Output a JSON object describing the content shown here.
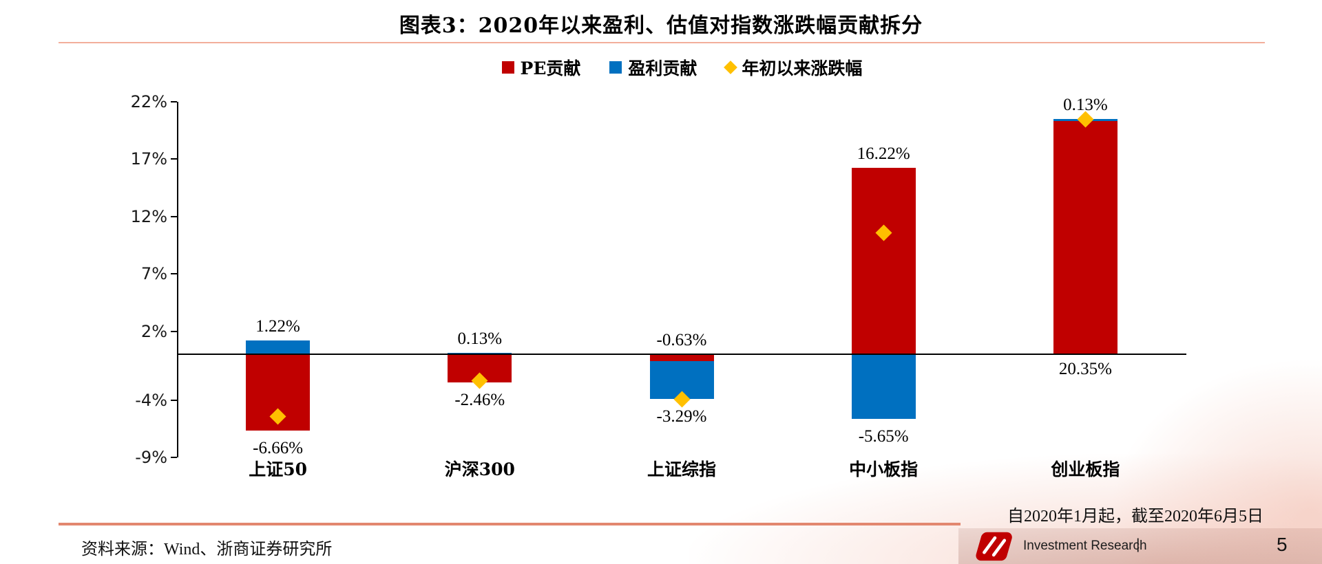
{
  "title": "图表3：2020年以来盈利、估值对指数涨跌幅贡献拆分",
  "legend": [
    {
      "label": "PE贡献",
      "color": "#C00000",
      "shape": "square"
    },
    {
      "label": "盈利贡献",
      "color": "#0070C0",
      "shape": "square"
    },
    {
      "label": "年初以来涨跌幅",
      "color": "#FFC000",
      "shape": "diamond"
    }
  ],
  "chart_data": {
    "type": "bar",
    "subtype": "stacked-bars-with-scatter-markers",
    "title": "图表3：2020年以来盈利、估值对指数涨跌幅贡献拆分",
    "xlabel": "",
    "ylabel": "",
    "categories": [
      "上证50",
      "沪深300",
      "上证综指",
      "中小板指",
      "创业板指"
    ],
    "series": [
      {
        "name": "PE贡献",
        "type": "bar",
        "color": "#C00000",
        "values": [
          -6.66,
          -2.46,
          -0.63,
          16.22,
          20.35
        ]
      },
      {
        "name": "盈利贡献",
        "type": "bar",
        "color": "#0070C0",
        "values": [
          1.22,
          0.13,
          -3.29,
          -5.65,
          0.13
        ]
      },
      {
        "name": "年初以来涨跌幅",
        "type": "scatter",
        "marker": "diamond",
        "color": "#FFC000",
        "values": [
          -5.44,
          -2.33,
          -3.92,
          10.57,
          20.48
        ]
      }
    ],
    "data_labels": [
      [
        {
          "text": "1.22%",
          "anchor": "above_top"
        },
        {
          "text": "-6.66%",
          "anchor": "below_bottom"
        }
      ],
      [
        {
          "text": "0.13%",
          "anchor": "above_top"
        },
        {
          "text": "-2.46%",
          "anchor": "below_bottom"
        }
      ],
      [
        {
          "text": "-0.63%",
          "anchor": "above_top"
        },
        {
          "text": "-3.29%",
          "anchor": "below_bottom"
        }
      ],
      [
        {
          "text": "16.22%",
          "anchor": "above_top"
        },
        {
          "text": "-5.65%",
          "anchor": "below_bottom"
        }
      ],
      [
        {
          "text": "0.13%",
          "anchor": "above_top"
        },
        {
          "text": "20.35%",
          "anchor": "below_axis"
        }
      ]
    ],
    "yticks": [
      {
        "label": "22%",
        "value": 22
      },
      {
        "label": "17%",
        "value": 17
      },
      {
        "label": "12%",
        "value": 12
      },
      {
        "label": "7%",
        "value": 7
      },
      {
        "label": "2%",
        "value": 2
      },
      {
        "label": "-4%",
        "value": -4
      },
      {
        "label": "-9%",
        "value": -9
      }
    ],
    "ylim": [
      -9,
      22
    ],
    "grid": false,
    "legend_position": "top"
  },
  "note": "自2020年1月起，截至2020年6月5日",
  "source": "资料来源：Wind、浙商证券研究所",
  "footer": {
    "brand": "Investment Research",
    "divider": "|",
    "page": "5"
  }
}
